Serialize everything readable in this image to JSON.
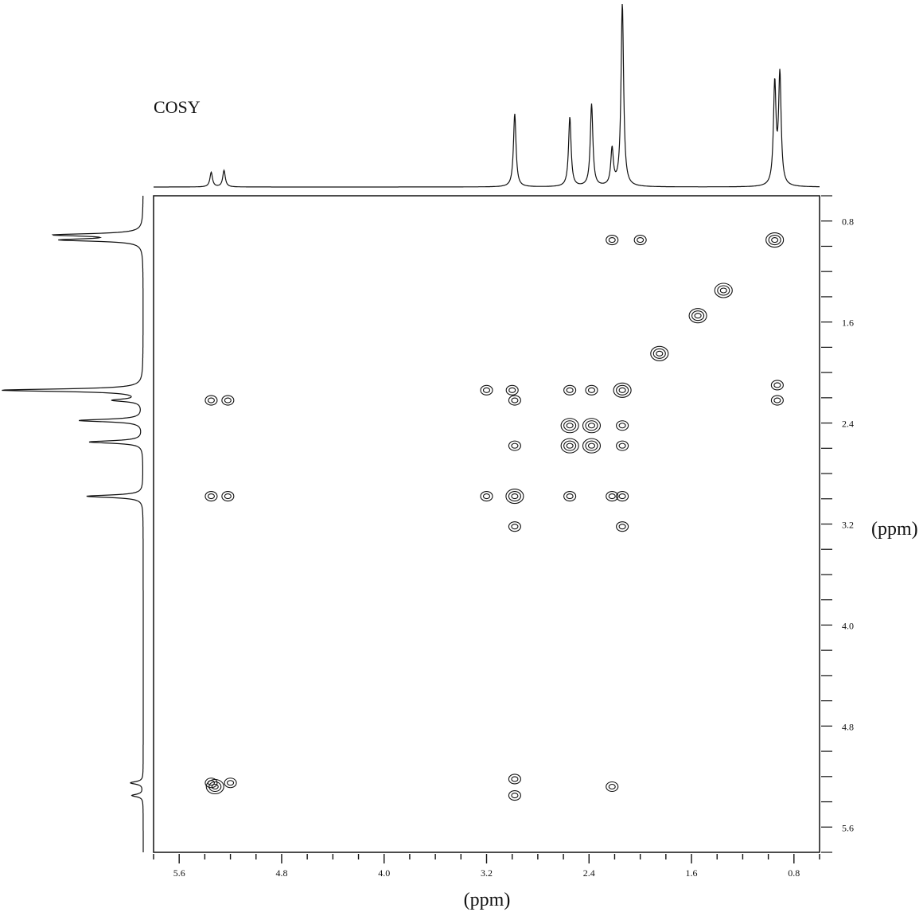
{
  "chart_data": {
    "type": "heatmap",
    "title": "COSY",
    "xlabel": "(ppm)",
    "ylabel": "(ppm)",
    "x_direction": "reversed",
    "y_direction": "downward-increasing",
    "xlim": [
      5.8,
      0.6
    ],
    "ylim": [
      0.6,
      5.8
    ],
    "x_ticks": [
      "5.6",
      "4.8",
      "4.0",
      "3.2",
      "2.4",
      "1.6",
      "0.8"
    ],
    "y_ticks": [
      "0.8",
      "1.6",
      "2.4",
      "3.2",
      "4.0",
      "4.8",
      "5.6"
    ],
    "projection_peaks": [
      {
        "shift": 5.35,
        "height": 0.08
      },
      {
        "shift": 5.25,
        "height": 0.09
      },
      {
        "shift": 2.98,
        "height": 0.4
      },
      {
        "shift": 2.55,
        "height": 0.38
      },
      {
        "shift": 2.38,
        "height": 0.45
      },
      {
        "shift": 2.22,
        "height": 0.2
      },
      {
        "shift": 2.14,
        "height": 1.0
      },
      {
        "shift": 0.95,
        "height": 0.55
      },
      {
        "shift": 0.91,
        "height": 0.6
      }
    ],
    "diagonal_peaks": [
      {
        "x": 0.95,
        "y": 0.95
      },
      {
        "x": 1.35,
        "y": 1.35
      },
      {
        "x": 1.55,
        "y": 1.55
      },
      {
        "x": 1.85,
        "y": 1.85
      },
      {
        "x": 2.14,
        "y": 2.14
      },
      {
        "x": 2.55,
        "y": 2.42
      },
      {
        "x": 2.38,
        "y": 2.42
      },
      {
        "x": 2.55,
        "y": 2.58
      },
      {
        "x": 2.38,
        "y": 2.58
      },
      {
        "x": 2.98,
        "y": 2.98
      },
      {
        "x": 5.32,
        "y": 5.28
      }
    ],
    "cross_peaks": [
      {
        "x": 2.22,
        "y": 0.95
      },
      {
        "x": 2.0,
        "y": 0.95
      },
      {
        "x": 0.93,
        "y": 2.22
      },
      {
        "x": 0.93,
        "y": 2.1
      },
      {
        "x": 5.35,
        "y": 2.22
      },
      {
        "x": 5.22,
        "y": 2.22
      },
      {
        "x": 3.2,
        "y": 2.14
      },
      {
        "x": 3.0,
        "y": 2.14
      },
      {
        "x": 2.98,
        "y": 2.22
      },
      {
        "x": 2.55,
        "y": 2.14
      },
      {
        "x": 2.38,
        "y": 2.14
      },
      {
        "x": 2.98,
        "y": 2.58
      },
      {
        "x": 2.14,
        "y": 2.42
      },
      {
        "x": 2.14,
        "y": 2.58
      },
      {
        "x": 5.35,
        "y": 2.98
      },
      {
        "x": 5.22,
        "y": 2.98
      },
      {
        "x": 3.2,
        "y": 2.98
      },
      {
        "x": 2.55,
        "y": 2.98
      },
      {
        "x": 2.22,
        "y": 2.98
      },
      {
        "x": 2.14,
        "y": 2.98
      },
      {
        "x": 2.98,
        "y": 3.22
      },
      {
        "x": 2.14,
        "y": 3.22
      },
      {
        "x": 5.35,
        "y": 5.25
      },
      {
        "x": 5.2,
        "y": 5.25
      },
      {
        "x": 2.98,
        "y": 5.22
      },
      {
        "x": 2.98,
        "y": 5.35
      },
      {
        "x": 2.22,
        "y": 5.28
      }
    ]
  }
}
